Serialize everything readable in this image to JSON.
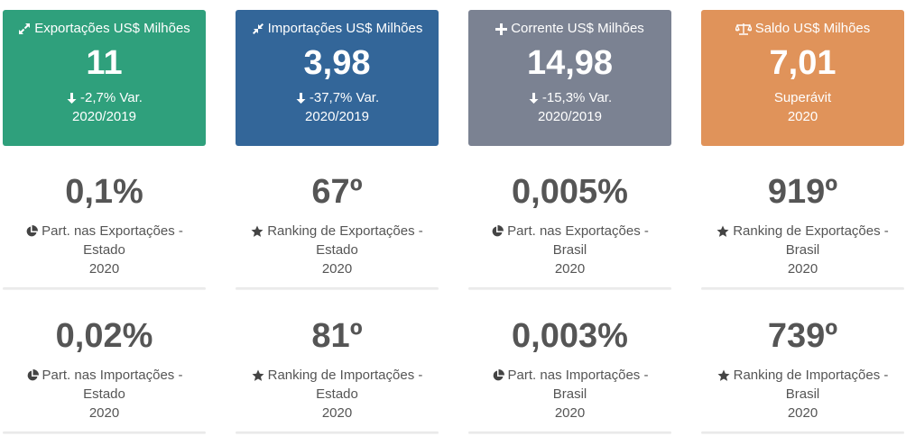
{
  "top_cards": [
    {
      "title": "Exportações US$ Milhões",
      "value": "11",
      "sub": "-2,7% Var.",
      "year": "2020/2019",
      "color": "#2fa07c",
      "icon": "expand-arrows-icon"
    },
    {
      "title": "Importações US$ Milhões",
      "value": "3,98",
      "sub": "-37,7% Var.",
      "year": "2020/2019",
      "color": "#336699",
      "icon": "compress-arrows-icon"
    },
    {
      "title": "Corrente US$ Milhões",
      "value": "14,98",
      "sub": "-15,3% Var.",
      "year": "2020/2019",
      "color": "#7b8292",
      "icon": "plus-icon"
    },
    {
      "title": "Saldo US$ Milhões",
      "value": "7,01",
      "sub": "Superávit",
      "year": "2020",
      "color": "#e0935a",
      "icon": "balance-scale-icon"
    }
  ],
  "export_stats": [
    {
      "value": "0,1%",
      "label": "Part. nas Exportações -",
      "scope": "Estado",
      "year": "2020",
      "icon": "pie-chart-icon"
    },
    {
      "value": "67º",
      "label": "Ranking de Exportações -",
      "scope": "Estado",
      "year": "2020",
      "icon": "star-icon"
    },
    {
      "value": "0,005%",
      "label": "Part. nas Exportações -",
      "scope": "Brasil",
      "year": "2020",
      "icon": "pie-chart-icon"
    },
    {
      "value": "919º",
      "label": "Ranking de Exportações -",
      "scope": "Brasil",
      "year": "2020",
      "icon": "star-icon"
    }
  ],
  "import_stats": [
    {
      "value": "0,02%",
      "label": "Part. nas Importações -",
      "scope": "Estado",
      "year": "2020",
      "icon": "pie-chart-icon"
    },
    {
      "value": "81º",
      "label": "Ranking de Importações -",
      "scope": "Estado",
      "year": "2020",
      "icon": "star-icon"
    },
    {
      "value": "0,003%",
      "label": "Part. nas Importações -",
      "scope": "Brasil",
      "year": "2020",
      "icon": "pie-chart-icon"
    },
    {
      "value": "739º",
      "label": "Ranking de Importações -",
      "scope": "Brasil",
      "year": "2020",
      "icon": "star-icon"
    }
  ]
}
